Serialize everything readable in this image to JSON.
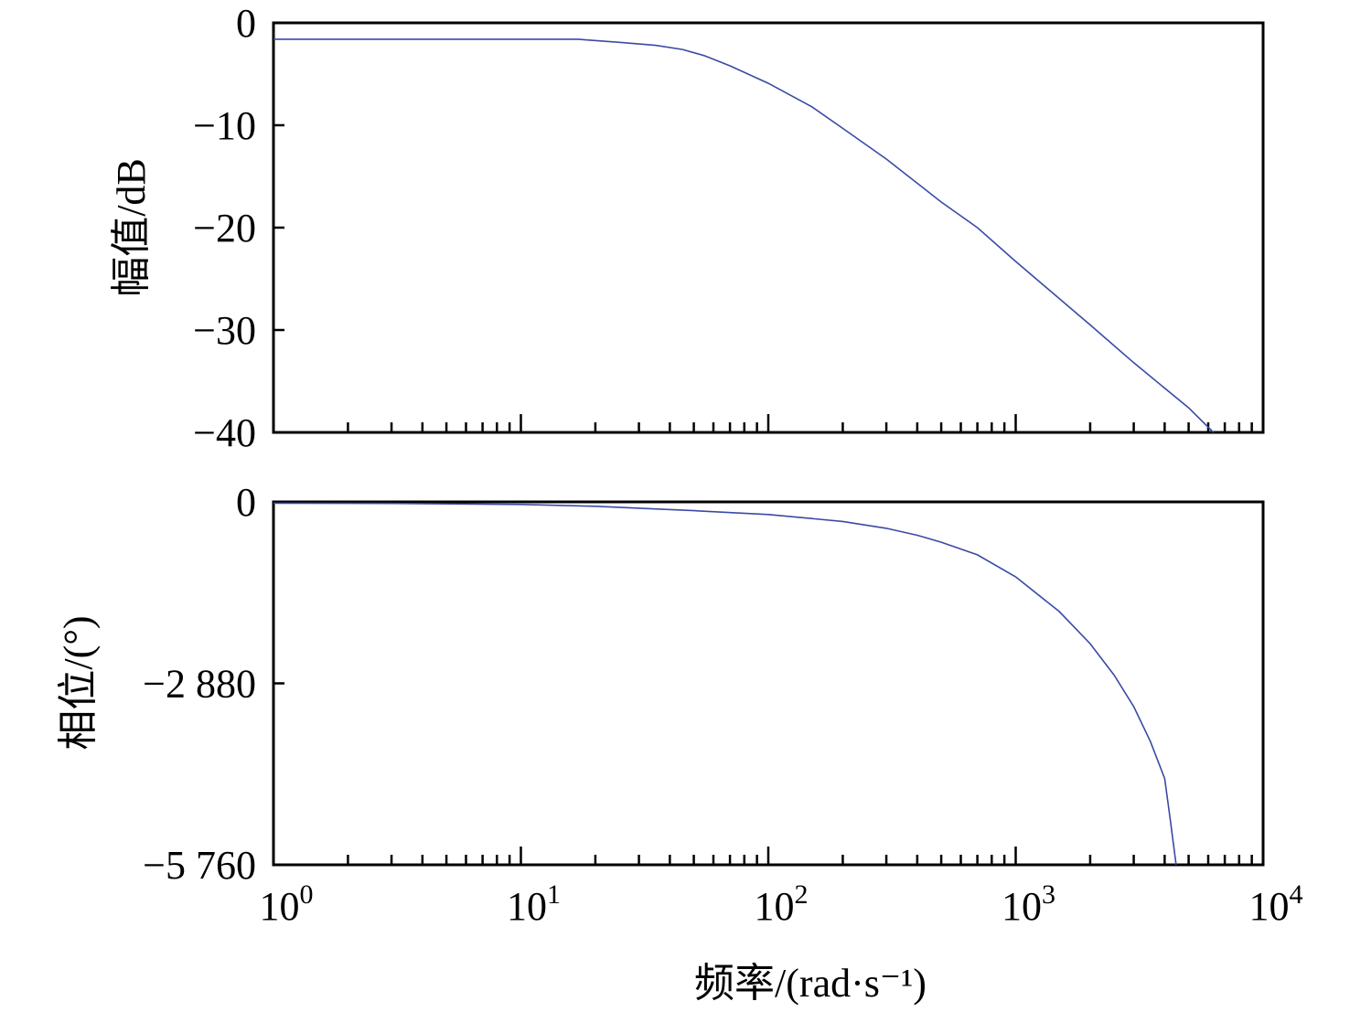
{
  "chart_data": [
    {
      "type": "line",
      "name": "magnitude-panel",
      "ylabel": "幅值/dB",
      "xscale": "log",
      "xlim": [
        1,
        10000
      ],
      "ylim": [
        -40,
        0
      ],
      "yticks": [
        0,
        -10,
        -20,
        -30,
        -40
      ],
      "ytick_labels": [
        "0",
        "−10",
        "−20",
        "−30",
        "−40"
      ],
      "series": [
        {
          "color": "#3a4aa6",
          "x": [
            1,
            5,
            10,
            17,
            25,
            35,
            45,
            55,
            70,
            100,
            150,
            200,
            300,
            500,
            700,
            1000,
            2000,
            3000,
            5000,
            6300
          ],
          "y": [
            -1.6,
            -1.6,
            -1.6,
            -1.6,
            -1.9,
            -2.2,
            -2.6,
            -3.2,
            -4.2,
            -5.9,
            -8.2,
            -10.3,
            -13.3,
            -17.5,
            -20.0,
            -23.3,
            -29.5,
            -33.2,
            -37.6,
            -40.0
          ]
        }
      ]
    },
    {
      "type": "line",
      "name": "phase-panel",
      "xlabel": "频率/(rad·s⁻¹)",
      "ylabel": "相位/(°)",
      "xscale": "log",
      "xlim": [
        1,
        10000
      ],
      "ylim": [
        -5760,
        0
      ],
      "yticks": [
        0,
        -2880,
        -5760
      ],
      "ytick_labels": [
        "0",
        "−2 880",
        "−5 760"
      ],
      "xticks": [
        1,
        10,
        100,
        1000,
        10000
      ],
      "xtick_base": "10",
      "xtick_exponents": [
        "0",
        "1",
        "2",
        "3",
        "4"
      ],
      "series": [
        {
          "color": "#3a4aa6",
          "x": [
            1,
            3,
            10,
            20,
            50,
            100,
            200,
            300,
            400,
            500,
            700,
            1000,
            1500,
            2000,
            2500,
            3000,
            3500,
            4000,
            4200,
            4450
          ],
          "y": [
            -20,
            -25,
            -40,
            -70,
            -140,
            -200,
            -310,
            -420,
            -530,
            -640,
            -840,
            -1190,
            -1740,
            -2250,
            -2750,
            -3250,
            -3800,
            -4390,
            -5000,
            -5760
          ]
        }
      ]
    }
  ]
}
